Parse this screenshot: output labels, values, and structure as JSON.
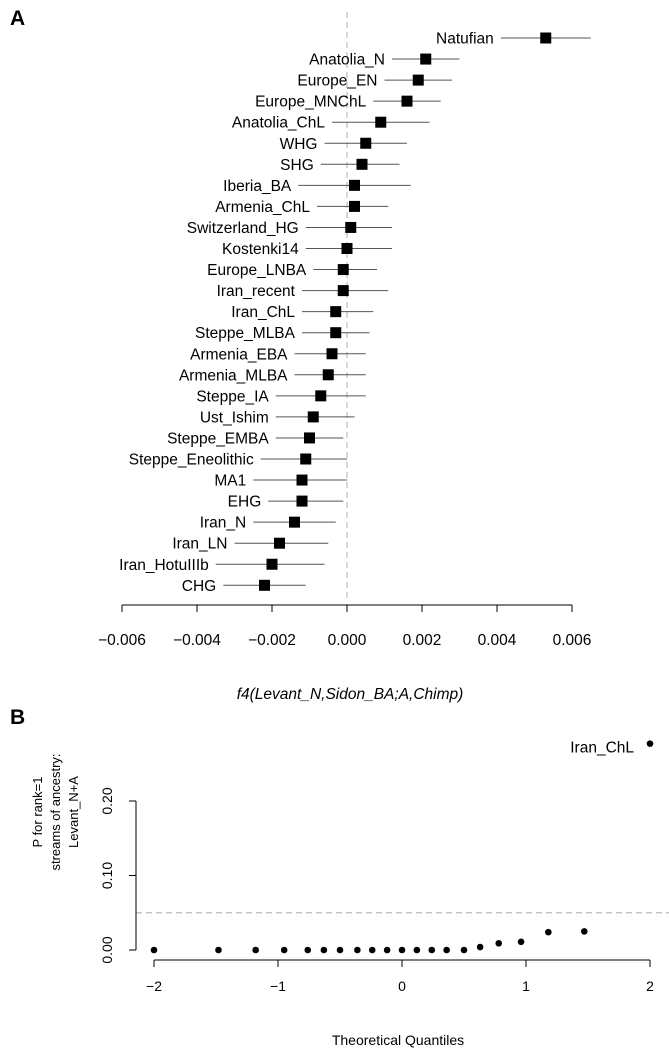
{
  "panels": {
    "a": "A",
    "b": "B"
  },
  "chart_data": [
    {
      "type": "scatter",
      "subtype": "forest",
      "panel": "A",
      "xlabel": "f4(Levant_N,Sidon_BA;A,Chimp)",
      "xlim": [
        -0.006,
        0.006
      ],
      "xticks": [
        -0.006,
        -0.004,
        -0.002,
        0.0,
        0.002,
        0.004,
        0.006
      ],
      "xtick_labels": [
        "−0.006",
        "−0.004",
        "−0.002",
        "0.000",
        "0.002",
        "0.004",
        "0.006"
      ],
      "reference_line": 0,
      "points": [
        {
          "label": "Natufian",
          "value": 0.0053,
          "low": 0.0041,
          "high": 0.0065
        },
        {
          "label": "Anatolia_N",
          "value": 0.0021,
          "low": 0.0012,
          "high": 0.003
        },
        {
          "label": "Europe_EN",
          "value": 0.0019,
          "low": 0.001,
          "high": 0.0028
        },
        {
          "label": "Europe_MNChL",
          "value": 0.0016,
          "low": 0.0007,
          "high": 0.0025
        },
        {
          "label": "Anatolia_ChL",
          "value": 0.0009,
          "low": -0.0004,
          "high": 0.0022
        },
        {
          "label": "WHG",
          "value": 0.0005,
          "low": -0.0006,
          "high": 0.0016
        },
        {
          "label": "SHG",
          "value": 0.0004,
          "low": -0.0007,
          "high": 0.0014
        },
        {
          "label": "Iberia_BA",
          "value": 0.0002,
          "low": -0.0013,
          "high": 0.0017
        },
        {
          "label": "Armenia_ChL",
          "value": 0.0002,
          "low": -0.0008,
          "high": 0.0011
        },
        {
          "label": "Switzerland_HG",
          "value": 0.0001,
          "low": -0.0011,
          "high": 0.0012
        },
        {
          "label": "Kostenki14",
          "value": 0.0,
          "low": -0.0011,
          "high": 0.0012
        },
        {
          "label": "Europe_LNBA",
          "value": -0.0001,
          "low": -0.0009,
          "high": 0.0008
        },
        {
          "label": "Iran_recent",
          "value": -0.0001,
          "low": -0.0012,
          "high": 0.0011
        },
        {
          "label": "Iran_ChL",
          "value": -0.0003,
          "low": -0.0012,
          "high": 0.0007
        },
        {
          "label": "Steppe_MLBA",
          "value": -0.0003,
          "low": -0.0012,
          "high": 0.0006
        },
        {
          "label": "Armenia_EBA",
          "value": -0.0004,
          "low": -0.0014,
          "high": 0.0005
        },
        {
          "label": "Armenia_MLBA",
          "value": -0.0005,
          "low": -0.0014,
          "high": 0.0005
        },
        {
          "label": "Steppe_IA",
          "value": -0.0007,
          "low": -0.0019,
          "high": 0.0005
        },
        {
          "label": "Ust_Ishim",
          "value": -0.0009,
          "low": -0.0019,
          "high": 0.0002
        },
        {
          "label": "Steppe_EMBA",
          "value": -0.001,
          "low": -0.0019,
          "high": -0.0001
        },
        {
          "label": "Steppe_Eneolithic",
          "value": -0.0011,
          "low": -0.0023,
          "high": 0.0
        },
        {
          "label": "MA1",
          "value": -0.0012,
          "low": -0.0025,
          "high": 0.0
        },
        {
          "label": "EHG",
          "value": -0.0012,
          "low": -0.0021,
          "high": -0.0001
        },
        {
          "label": "Iran_N",
          "value": -0.0014,
          "low": -0.0025,
          "high": -0.0003
        },
        {
          "label": "Iran_LN",
          "value": -0.0018,
          "low": -0.003,
          "high": -0.0005
        },
        {
          "label": "Iran_HotuIIIb",
          "value": -0.002,
          "low": -0.0035,
          "high": -0.0006
        },
        {
          "label": "CHG",
          "value": -0.0022,
          "low": -0.0033,
          "high": -0.0011
        }
      ]
    },
    {
      "type": "scatter",
      "subtype": "qq",
      "panel": "B",
      "xlabel": "Theoretical Quantiles",
      "ylabel_lines": [
        "P for rank=1",
        "streams of ancestry:",
        "Levant_N+A"
      ],
      "xlim": [
        -2.05,
        2.05
      ],
      "ylim": [
        -0.01,
        0.28
      ],
      "xticks": [
        -2,
        -1,
        0,
        1,
        2
      ],
      "xtick_labels": [
        "−2",
        "−1",
        "0",
        "1",
        "2"
      ],
      "yticks": [
        0.0,
        0.1,
        0.2
      ],
      "ytick_labels": [
        "0.00",
        "0.10",
        "0.20"
      ],
      "reference_line": 0.05,
      "points": [
        {
          "x": -2.0,
          "y": 0.0
        },
        {
          "x": -1.48,
          "y": 0.0
        },
        {
          "x": -1.18,
          "y": 0.0
        },
        {
          "x": -0.95,
          "y": 0.0
        },
        {
          "x": -0.76,
          "y": 0.0
        },
        {
          "x": -0.63,
          "y": 0.0
        },
        {
          "x": -0.5,
          "y": 0.0
        },
        {
          "x": -0.36,
          "y": 0.0
        },
        {
          "x": -0.24,
          "y": 0.0
        },
        {
          "x": -0.12,
          "y": 0.0
        },
        {
          "x": 0.0,
          "y": 0.0
        },
        {
          "x": 0.12,
          "y": 0.0
        },
        {
          "x": 0.24,
          "y": 0.0
        },
        {
          "x": 0.36,
          "y": 0.0
        },
        {
          "x": 0.5,
          "y": 0.0
        },
        {
          "x": 0.63,
          "y": 0.004
        },
        {
          "x": 0.78,
          "y": 0.009
        },
        {
          "x": 0.96,
          "y": 0.011
        },
        {
          "x": 1.18,
          "y": 0.024
        },
        {
          "x": 1.47,
          "y": 0.025
        },
        {
          "x": 2.0,
          "y": 0.277,
          "label": "Iran_ChL"
        }
      ]
    }
  ]
}
